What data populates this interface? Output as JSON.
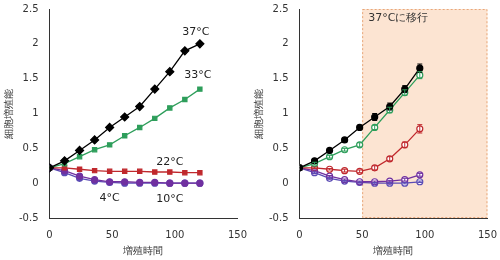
{
  "chart_data": [
    {
      "type": "line",
      "xlabel": "増殖時間",
      "ylabel": "細胞増殖能",
      "x": [
        0,
        12,
        24,
        36,
        48,
        60,
        72,
        84,
        96,
        108,
        120
      ],
      "xlim": [
        0,
        150
      ],
      "xticks": [
        0,
        50,
        100,
        150
      ],
      "ylim": [
        -0.5,
        2.5
      ],
      "yticks": [
        -0.5,
        0,
        0.5,
        1,
        1.5,
        2,
        2.5
      ],
      "grid": false,
      "series": [
        {
          "name": "37°C",
          "color": "#000000",
          "marker": "diamond",
          "values": [
            0.22,
            0.32,
            0.47,
            0.62,
            0.8,
            0.95,
            1.1,
            1.35,
            1.6,
            1.9,
            2.0
          ]
        },
        {
          "name": "33°C",
          "color": "#2e9e5b",
          "marker": "square",
          "values": [
            0.22,
            0.28,
            0.38,
            0.48,
            0.55,
            0.68,
            0.8,
            0.93,
            1.08,
            1.2,
            1.35
          ]
        },
        {
          "name": "22°C",
          "color": "#c0282d",
          "marker": "square",
          "values": [
            0.22,
            0.22,
            0.2,
            0.18,
            0.17,
            0.17,
            0.17,
            0.16,
            0.16,
            0.15,
            0.15
          ]
        },
        {
          "name": "10°C",
          "color": "#7030a0",
          "marker": "circle",
          "values": [
            0.22,
            0.18,
            0.1,
            0.05,
            0.02,
            0.02,
            0.01,
            0.01,
            0.0,
            0.0,
            0.0
          ]
        },
        {
          "name": "4°C",
          "color": "#5b4bb5",
          "marker": "circle",
          "values": [
            0.22,
            0.15,
            0.07,
            0.03,
            0.01,
            0.0,
            0.0,
            0.0,
            0.0,
            0.0,
            0.0
          ]
        }
      ]
    },
    {
      "type": "line",
      "xlabel": "増殖時間",
      "ylabel": "細胞増殖能",
      "x": [
        0,
        12,
        24,
        36,
        48,
        60,
        72,
        84,
        96
      ],
      "xlim": [
        0,
        150
      ],
      "xticks": [
        0,
        50,
        100,
        150
      ],
      "ylim": [
        -0.5,
        2.5
      ],
      "yticks": [
        -0.5,
        0,
        0.5,
        1,
        1.5,
        2,
        2.5
      ],
      "grid": false,
      "shaded_region": {
        "xlim": [
          50,
          150
        ],
        "label": "37°Cに移行"
      },
      "series": [
        {
          "color": "#000000",
          "marker": "circle",
          "values": [
            0.22,
            0.32,
            0.47,
            0.62,
            0.8,
            0.95,
            1.1,
            1.35,
            1.65
          ],
          "errors": [
            0,
            0.02,
            0.02,
            0.03,
            0.03,
            0.05,
            0.05,
            0.05,
            0.06
          ]
        },
        {
          "color": "#2e9e5b",
          "marker": "open_circle",
          "values": [
            0.22,
            0.28,
            0.38,
            0.48,
            0.55,
            0.8,
            1.05,
            1.3,
            1.55
          ],
          "errors": [
            0,
            0.02,
            0.02,
            0.02,
            0.03,
            0.03,
            0.04,
            0.04,
            0.05
          ]
        },
        {
          "color": "#c0282d",
          "marker": "open_circle",
          "values": [
            0.22,
            0.22,
            0.2,
            0.18,
            0.17,
            0.22,
            0.35,
            0.55,
            0.78
          ],
          "errors": [
            0,
            0.01,
            0.01,
            0.02,
            0.02,
            0.03,
            0.03,
            0.04,
            0.06
          ]
        },
        {
          "color": "#7030a0",
          "marker": "open_circle",
          "values": [
            0.22,
            0.18,
            0.1,
            0.05,
            0.02,
            0.02,
            0.03,
            0.05,
            0.12
          ],
          "errors": [
            0,
            0.01,
            0.01,
            0.01,
            0.01,
            0.01,
            0.01,
            0.02,
            0.02
          ]
        },
        {
          "color": "#5b4bb5",
          "marker": "open_circle",
          "values": [
            0.22,
            0.15,
            0.07,
            0.03,
            0.01,
            0.0,
            0.0,
            0.0,
            0.02
          ],
          "errors": [
            0,
            0.01,
            0.01,
            0.01,
            0.01,
            0.01,
            0.01,
            0.01,
            0.01
          ]
        }
      ]
    }
  ]
}
